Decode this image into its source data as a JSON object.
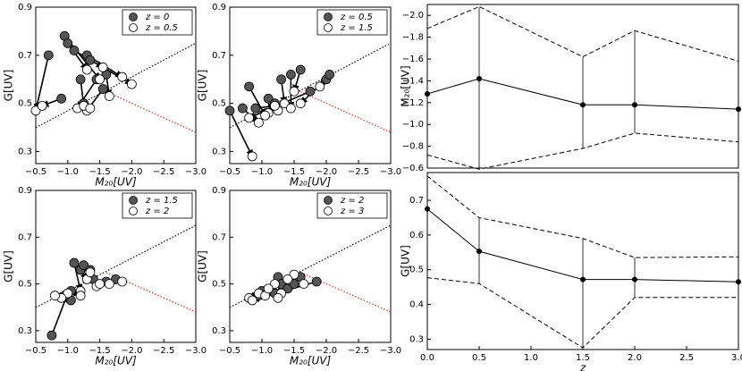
{
  "chart_data": [
    {
      "type": "scatter",
      "xlabel": "M₂₀[UV]",
      "ylabel": "G[UV]",
      "xlim": [
        -0.5,
        -3.0
      ],
      "ylim": [
        0.25,
        0.9
      ],
      "xticks": [
        {
          "value": -0.5,
          "label": "−0.5"
        },
        {
          "value": -1.0,
          "label": "−1.0"
        },
        {
          "value": -1.5,
          "label": "−1.5"
        },
        {
          "value": -2.0,
          "label": "−2.0"
        },
        {
          "value": -2.5,
          "label": "−2.5"
        },
        {
          "value": -3.0,
          "label": "−3.0"
        }
      ],
      "yticks": [
        0.3,
        0.5,
        0.7,
        0.9
      ],
      "series": [
        {
          "name": "z = 0",
          "color": "#555555",
          "x": [
            -0.7,
            -0.95,
            -1.0,
            -1.1,
            -1.3,
            -1.35,
            -1.45,
            -1.55,
            -1.6,
            -1.2,
            -0.9,
            -1.25
          ],
          "values": [
            0.7,
            0.78,
            0.75,
            0.72,
            0.7,
            0.68,
            0.6,
            0.56,
            0.62,
            0.6,
            0.52,
            0.5
          ]
        },
        {
          "name": "z = 0.5",
          "color": "#ffffff",
          "x": [
            -0.5,
            -1.5,
            -1.3,
            -1.55,
            -1.85,
            -2.0,
            -1.15,
            -1.3,
            -1.65,
            -1.25,
            -0.6,
            -1.35
          ],
          "values": [
            0.47,
            0.6,
            0.64,
            0.65,
            0.61,
            0.58,
            0.48,
            0.47,
            0.53,
            0.49,
            0.49,
            0.48
          ]
        }
      ]
    },
    {
      "type": "scatter",
      "xlabel": "M₂₀[UV]",
      "ylabel": "G[UV]",
      "xlim": [
        -0.5,
        -3.0
      ],
      "ylim": [
        0.25,
        0.9
      ],
      "xticks": [
        {
          "value": -0.5,
          "label": "−0.5"
        },
        {
          "value": -1.0,
          "label": "−1.0"
        },
        {
          "value": -1.5,
          "label": "−1.5"
        },
        {
          "value": -2.0,
          "label": "−2.0"
        },
        {
          "value": -2.5,
          "label": "−2.5"
        },
        {
          "value": -3.0,
          "label": "−3.0"
        }
      ],
      "yticks": [
        0.3,
        0.5,
        0.7,
        0.9
      ],
      "series": [
        {
          "name": "z = 0.5",
          "color": "#555555",
          "x": [
            -0.5,
            -0.7,
            -1.1,
            -1.3,
            -1.45,
            -1.6,
            -1.75,
            -2.0,
            -2.05,
            -1.2,
            -0.9,
            -0.8
          ],
          "values": [
            0.47,
            0.48,
            0.52,
            0.6,
            0.62,
            0.64,
            0.55,
            0.6,
            0.62,
            0.5,
            0.48,
            0.57
          ]
        },
        {
          "name": "z = 1.5",
          "color": "#ffffff",
          "x": [
            -0.85,
            -0.95,
            -1.25,
            -1.35,
            -1.45,
            -1.5,
            -0.8,
            -1.6,
            -1.9,
            -1.1,
            -1.2,
            -1.05
          ],
          "values": [
            0.28,
            0.42,
            0.47,
            0.5,
            0.48,
            0.55,
            0.44,
            0.5,
            0.57,
            0.46,
            0.49,
            0.45
          ]
        }
      ]
    },
    {
      "type": "scatter",
      "xlabel": "M₂₀[UV]",
      "ylabel": "G[UV]",
      "xlim": [
        -0.5,
        -3.0
      ],
      "ylim": [
        0.25,
        0.9
      ],
      "xticks": [
        {
          "value": -0.5,
          "label": "−0.5"
        },
        {
          "value": -1.0,
          "label": "−1.0"
        },
        {
          "value": -1.5,
          "label": "−1.5"
        },
        {
          "value": -2.0,
          "label": "−2.0"
        },
        {
          "value": -2.5,
          "label": "−2.5"
        },
        {
          "value": -3.0,
          "label": "−3.0"
        }
      ],
      "yticks": [
        0.3,
        0.5,
        0.7,
        0.9
      ],
      "series": [
        {
          "name": "z = 1.5",
          "color": "#555555",
          "x": [
            -0.75,
            -1.05,
            -1.1,
            -1.2,
            -1.25,
            -1.35,
            -1.4,
            -1.05,
            -0.95,
            -1.6,
            -1.75
          ],
          "values": [
            0.28,
            0.43,
            0.59,
            0.56,
            0.58,
            0.56,
            0.52,
            0.47,
            0.45,
            0.51,
            0.52
          ]
        },
        {
          "name": "z = 2",
          "color": "#ffffff",
          "x": [
            -1.0,
            -0.9,
            -1.2,
            -1.3,
            -1.45,
            -1.35,
            -1.5,
            -1.2,
            -0.8,
            -1.65,
            -1.85
          ],
          "values": [
            0.46,
            0.44,
            0.47,
            0.52,
            0.49,
            0.55,
            0.5,
            0.45,
            0.45,
            0.5,
            0.51
          ]
        }
      ]
    },
    {
      "type": "scatter",
      "xlabel": "M₂₀[UV]",
      "ylabel": "G[UV]",
      "xlim": [
        -0.5,
        -3.0
      ],
      "ylim": [
        0.25,
        0.9
      ],
      "xticks": [
        {
          "value": -0.5,
          "label": "−0.5"
        },
        {
          "value": -1.0,
          "label": "−1.0"
        },
        {
          "value": -1.5,
          "label": "−1.5"
        },
        {
          "value": -2.0,
          "label": "−2.0"
        },
        {
          "value": -2.5,
          "label": "−2.5"
        },
        {
          "value": -3.0,
          "label": "−3.0"
        }
      ],
      "yticks": [
        0.3,
        0.5,
        0.7,
        0.9
      ],
      "series": [
        {
          "name": "z = 2",
          "color": "#555555",
          "x": [
            -1.0,
            -1.15,
            -1.25,
            -1.3,
            -1.45,
            -1.6,
            -1.4,
            -1.85,
            -0.95,
            -1.2,
            -1.5
          ],
          "values": [
            0.47,
            0.48,
            0.53,
            0.5,
            0.52,
            0.53,
            0.48,
            0.51,
            0.45,
            0.46,
            0.5
          ]
        },
        {
          "name": "z = 3",
          "color": "#ffffff",
          "x": [
            -0.8,
            -0.95,
            -1.05,
            -1.2,
            -1.5,
            -1.65,
            -1.3,
            -0.85,
            -1.1,
            -1.4,
            -1.25
          ],
          "values": [
            0.44,
            0.46,
            0.45,
            0.5,
            0.54,
            0.5,
            0.46,
            0.43,
            0.48,
            0.52,
            0.44
          ]
        }
      ]
    },
    {
      "type": "line",
      "ylabel": "M₂₀[UV]",
      "x": [
        0,
        0.5,
        1.5,
        2,
        3
      ],
      "xlim": [
        0,
        3
      ],
      "ylim": [
        -0.6,
        -2.1
      ],
      "yticks": [
        {
          "value": -2.0,
          "label": "−2.0"
        },
        {
          "value": -1.8,
          "label": "−1.8"
        },
        {
          "value": -1.6,
          "label": "−1.6"
        },
        {
          "value": -1.4,
          "label": "−1.4"
        },
        {
          "value": -1.2,
          "label": "−1.2"
        },
        {
          "value": -1.0,
          "label": "−1.0"
        },
        {
          "value": -0.8,
          "label": "−0.8"
        },
        {
          "value": -0.6,
          "label": "−0.6"
        }
      ],
      "series": [
        {
          "color": "#000000",
          "linestyle": "solid",
          "values": [
            -1.28,
            -1.42,
            -1.18,
            -1.18,
            -1.14
          ]
        },
        {
          "color": "#000000",
          "linestyle": "dashed",
          "values": [
            -1.88,
            -2.08,
            -1.62,
            -1.86,
            -1.58
          ]
        },
        {
          "color": "#000000",
          "linestyle": "dashed",
          "values": [
            -0.72,
            -0.59,
            -0.78,
            -0.92,
            -0.84
          ]
        }
      ]
    },
    {
      "type": "line",
      "ylabel": "G[UV]",
      "xlabel": "z",
      "x": [
        0,
        0.5,
        1.5,
        2,
        3
      ],
      "xlim": [
        0,
        3
      ],
      "ylim": [
        0.27,
        0.78
      ],
      "xticks": [
        {
          "value": 0,
          "label": "0.0"
        },
        0.5,
        {
          "value": 1,
          "label": "1.0"
        },
        1.5,
        {
          "value": 2,
          "label": "2.0"
        },
        2.5,
        {
          "value": 3,
          "label": "3.0"
        }
      ],
      "yticks": [
        0.3,
        0.4,
        0.5,
        0.6,
        0.7
      ],
      "series": [
        {
          "color": "#000000",
          "linestyle": "solid",
          "values": [
            0.675,
            0.553,
            0.472,
            0.472,
            0.465
          ]
        },
        {
          "color": "#000000",
          "linestyle": "dashed",
          "values": [
            0.77,
            0.65,
            0.59,
            0.535,
            0.537
          ]
        },
        {
          "color": "#000000",
          "linestyle": "dashed",
          "values": [
            0.477,
            0.46,
            0.275,
            0.42,
            0.42
          ]
        }
      ]
    }
  ]
}
